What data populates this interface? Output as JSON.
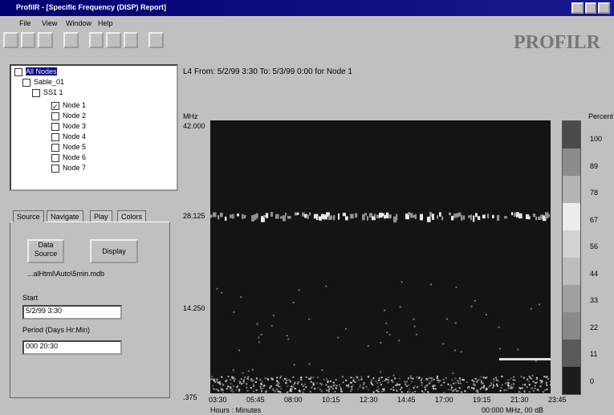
{
  "window": {
    "title": "ProfilR - [Specific Frequency (DISP) Report]"
  },
  "menu": [
    "File",
    "View",
    "Window",
    "Help"
  ],
  "logo": "PROFILR",
  "tree": {
    "root": "All Nodes",
    "site": "Sable_01",
    "group": "SS1 1",
    "nodes": [
      "Node 1",
      "Node 2",
      "Node 3",
      "Node 4",
      "Node 5",
      "Node 6",
      "Node 7"
    ]
  },
  "tabs": [
    "Source",
    "Navigate",
    "Play",
    "Colors"
  ],
  "source": {
    "data_button": "Data Source",
    "display_button": "Display",
    "file": "...alHtml\\Auto\\5min.mdb",
    "start_label": "Start",
    "start_value": "5/2/99 3:30",
    "period_label": "Period (Days Hr:Min)",
    "period_value": "000 20:30"
  },
  "report": {
    "header": "L4 From: 5/2/99 3:30 To: 5/3/99 0:00 for Node 1",
    "y_unit": "MHz",
    "y_labels": [
      "42.000",
      "28.125",
      "14.250",
      ".375"
    ],
    "x_labels": [
      "03:30",
      "05:45",
      "08:00",
      "10:15",
      "12:30",
      "14:45",
      "17:00",
      "19:15",
      "21:30",
      "23:45"
    ],
    "x_title": "Hours : Minutes",
    "cursor": "00:000 MHz, 00 dB",
    "scale_title": "Percent",
    "scale_labels": [
      "100",
      "89",
      "78",
      "67",
      "56",
      "44",
      "33",
      "22",
      "11",
      "0"
    ]
  }
}
